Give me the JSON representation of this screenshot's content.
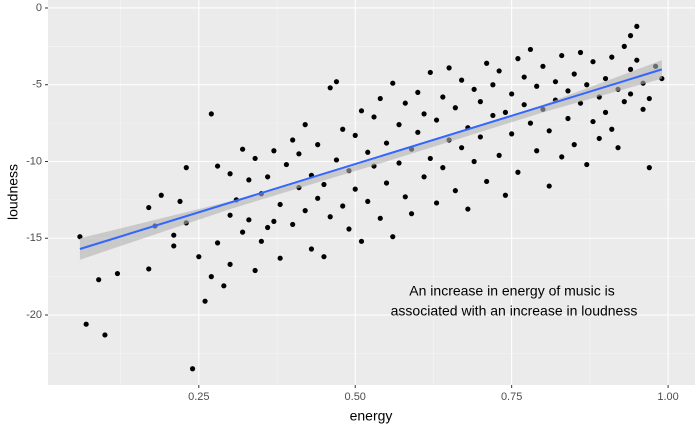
{
  "chart_data": {
    "type": "scatter",
    "x_label": "energy",
    "y_label": "loudness",
    "annotation": [
      "An increase in energy of music is",
      "associated with an increase in loudness"
    ],
    "color": "#000000",
    "x": [
      0.06,
      0.07,
      0.09,
      0.1,
      0.12,
      0.17,
      0.17,
      0.19,
      0.18,
      0.21,
      0.21,
      0.23,
      0.22,
      0.23,
      0.24,
      0.25,
      0.26,
      0.27,
      0.27,
      0.28,
      0.29,
      0.3,
      0.31,
      0.32,
      0.33,
      0.33,
      0.34,
      0.35,
      0.35,
      0.36,
      0.37,
      0.37,
      0.38,
      0.38,
      0.39,
      0.4,
      0.4,
      0.41,
      0.41,
      0.42,
      0.42,
      0.43,
      0.43,
      0.44,
      0.44,
      0.45,
      0.45,
      0.46,
      0.46,
      0.47,
      0.47,
      0.48,
      0.48,
      0.49,
      0.49,
      0.5,
      0.5,
      0.51,
      0.51,
      0.52,
      0.52,
      0.53,
      0.53,
      0.54,
      0.54,
      0.55,
      0.55,
      0.56,
      0.56,
      0.57,
      0.57,
      0.58,
      0.58,
      0.59,
      0.59,
      0.6,
      0.6,
      0.61,
      0.61,
      0.62,
      0.62,
      0.63,
      0.63,
      0.64,
      0.64,
      0.65,
      0.65,
      0.66,
      0.66,
      0.67,
      0.67,
      0.68,
      0.68,
      0.69,
      0.69,
      0.7,
      0.7,
      0.71,
      0.71,
      0.72,
      0.72,
      0.73,
      0.73,
      0.74,
      0.74,
      0.75,
      0.75,
      0.76,
      0.76,
      0.77,
      0.77,
      0.78,
      0.78,
      0.79,
      0.79,
      0.8,
      0.8,
      0.81,
      0.81,
      0.82,
      0.82,
      0.83,
      0.83,
      0.84,
      0.84,
      0.85,
      0.85,
      0.86,
      0.86,
      0.87,
      0.87,
      0.88,
      0.88,
      0.89,
      0.89,
      0.9,
      0.9,
      0.91,
      0.91,
      0.92,
      0.92,
      0.93,
      0.93,
      0.94,
      0.94,
      0.95,
      0.95,
      0.96,
      0.96,
      0.97,
      0.97,
      0.98,
      0.99,
      0.94,
      0.3,
      0.32,
      0.34,
      0.36,
      0.28,
      0.3
    ],
    "values": [
      -14.9,
      -20.6,
      -17.7,
      -21.3,
      -17.3,
      -13,
      -17,
      -12.2,
      -14.2,
      -15.5,
      -14.8,
      -10.4,
      -12.6,
      -14,
      -23.5,
      -16.2,
      -19.1,
      -17.5,
      -6.9,
      -10.3,
      -18.1,
      -10.8,
      -12.5,
      -14.6,
      -11.2,
      -13.8,
      -9.8,
      -15.2,
      -12.1,
      -11,
      -13.9,
      -9.3,
      -16.3,
      -12.8,
      -10.2,
      -8.6,
      -14.1,
      -11.7,
      -9.5,
      -13.2,
      -7.6,
      -15.7,
      -10.9,
      -12.4,
      -8.9,
      -16.2,
      -11.5,
      -5.2,
      -13.6,
      -9.9,
      -4.8,
      -12.9,
      -7.9,
      -10.6,
      -14.4,
      -8.3,
      -11.8,
      -6.7,
      -15.2,
      -9.4,
      -12.6,
      -7.1,
      -10.3,
      -13.7,
      -5.9,
      -8.8,
      -11.4,
      -4.9,
      -14.9,
      -7.6,
      -10.1,
      -12.3,
      -6.2,
      -9.2,
      -13.4,
      -5.5,
      -8.1,
      -11,
      -6.9,
      -9.8,
      -4.2,
      -12.7,
      -7.3,
      -5.8,
      -10.4,
      -8.6,
      -3.9,
      -11.9,
      -6.5,
      -9.1,
      -4.7,
      -7.8,
      -13.1,
      -5.3,
      -10,
      -6.1,
      -8.4,
      -3.6,
      -11.3,
      -7,
      -5,
      -9.6,
      -4.1,
      -6.8,
      -12.2,
      -5.6,
      -8.2,
      -3.3,
      -10.7,
      -6.3,
      -4.5,
      -7.5,
      -2.7,
      -9.3,
      -5.1,
      -6.6,
      -3.8,
      -8,
      -11.6,
      -4.8,
      -6,
      -3.1,
      -9.7,
      -5.4,
      -7.2,
      -4.3,
      -8.9,
      -6.2,
      -2.9,
      -5,
      -10.2,
      -7.4,
      -3.5,
      -5.8,
      -8.5,
      -4.6,
      -6.8,
      -3.2,
      -7.9,
      -5.3,
      -9.1,
      -2.5,
      -6.1,
      -4,
      -5.6,
      -1.2,
      -3.4,
      -6.6,
      -4.9,
      -10.4,
      -5.9,
      -3.8,
      -4.6,
      -1.8,
      -16.7,
      -9.2,
      -17.1,
      -14.3,
      -15.3,
      -13.5
    ],
    "fit": {
      "color": "#3366ff",
      "x": [
        0.06,
        0.99
      ],
      "values": [
        -15.7,
        -4.0
      ]
    },
    "band": {
      "color": "#b3b3b3",
      "x": [
        0.06,
        0.3,
        0.55,
        0.8,
        0.99
      ],
      "lower": [
        -16.4,
        -13.1,
        -10.0,
        -6.8,
        -4.6
      ],
      "upper": [
        -15.0,
        -12.6,
        -9.6,
        -6.3,
        -3.4
      ]
    },
    "xlim": [
      0.009,
      1.043
    ],
    "ylim": [
      -24.56,
      0.52
    ],
    "xticks": [
      0.25,
      {
        "value": 0.5,
        "label": "0.50"
      },
      0.75,
      {
        "value": 1.0,
        "label": "1.00"
      }
    ],
    "yticks": [
      0,
      -5,
      -10,
      -15,
      -20
    ],
    "grid": true
  }
}
